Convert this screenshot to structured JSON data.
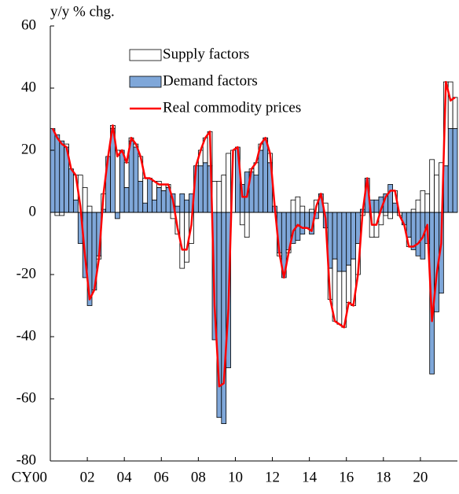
{
  "chart_data": {
    "type": "bar_line",
    "y_label": "y/y % chg.",
    "categories": [
      "CY00",
      null,
      null,
      null,
      null,
      null,
      null,
      null,
      "02",
      null,
      null,
      null,
      null,
      null,
      null,
      null,
      "04",
      null,
      null,
      null,
      null,
      null,
      null,
      null,
      "06",
      null,
      null,
      null,
      null,
      null,
      null,
      null,
      "08",
      null,
      null,
      null,
      null,
      null,
      null,
      null,
      "10",
      null,
      null,
      null,
      null,
      null,
      null,
      null,
      "12",
      null,
      null,
      null,
      null,
      null,
      null,
      null,
      "14",
      null,
      null,
      null,
      null,
      null,
      null,
      null,
      "16",
      null,
      null,
      null,
      null,
      null,
      null,
      null,
      "18",
      null,
      null,
      null,
      null,
      null,
      null,
      null,
      "20",
      null,
      null,
      null,
      null,
      null,
      null,
      null
    ],
    "series": [
      {
        "name": "Supply factors",
        "color": "#ffffff",
        "kind": "bar",
        "values": [
          0,
          -1,
          -1,
          1,
          0,
          8,
          12,
          8,
          2,
          0,
          -1,
          5,
          0,
          1,
          20,
          0,
          8,
          1,
          1,
          8,
          8,
          0,
          6,
          2,
          2,
          1,
          -2,
          -7,
          -18,
          -16,
          -10,
          0,
          5,
          8,
          11,
          10,
          10,
          12,
          19,
          20,
          0,
          -4,
          -8,
          1,
          4,
          2,
          0,
          3,
          0,
          -1,
          0,
          -1,
          4,
          5,
          2,
          0,
          1,
          4,
          0,
          3,
          -10,
          -20,
          -17,
          -18,
          -12,
          -15,
          -10,
          -1,
          0,
          -8,
          -8,
          -4,
          -1,
          -2,
          4,
          -1,
          0,
          -3,
          1,
          4,
          7,
          6,
          17,
          12,
          16,
          27,
          15,
          10
        ]
      },
      {
        "name": "Demand factors",
        "color": "#7fa7d9",
        "kind": "bar",
        "values": [
          27,
          25,
          23,
          21,
          14,
          4,
          -10,
          -21,
          -30,
          -25,
          -14,
          1,
          18,
          27,
          -2,
          20,
          8,
          23,
          21,
          10,
          3,
          11,
          4,
          8,
          7,
          8,
          6,
          2,
          6,
          4,
          6,
          15,
          15,
          16,
          15,
          -41,
          -66,
          -68,
          -50,
          0,
          21,
          9,
          13,
          13,
          12,
          20,
          24,
          16,
          2,
          -13,
          -21,
          -12,
          -10,
          -9,
          -7,
          -5,
          -7,
          -2,
          6,
          -5,
          -18,
          -15,
          -19,
          -19,
          -17,
          -15,
          -10,
          1,
          11,
          4,
          4,
          5,
          6,
          9,
          3,
          0,
          -4,
          -8,
          -12,
          -14,
          -15,
          -10,
          -52,
          -32,
          -26,
          15,
          27,
          27
        ]
      },
      {
        "name": "Real commodity prices",
        "color": "#ff0000",
        "kind": "line",
        "values": [
          27,
          24,
          22,
          21,
          14,
          12,
          2,
          -14,
          -28,
          -25,
          -15,
          6,
          18,
          28,
          18,
          20,
          16,
          24,
          22,
          18,
          11,
          11,
          10,
          9,
          9,
          9,
          4,
          -5,
          -12,
          -12,
          -4,
          15,
          20,
          24,
          26,
          -30,
          -56,
          -55,
          -31,
          20,
          21,
          5,
          5,
          14,
          16,
          22,
          24,
          19,
          2,
          -13,
          -21,
          -13,
          -6,
          -4,
          -5,
          -5,
          -6,
          2,
          6,
          -2,
          -28,
          -35,
          -36,
          -37,
          -29,
          -30,
          -20,
          0,
          11,
          -4,
          -4,
          1,
          5,
          7,
          7,
          -1,
          -4,
          -11,
          -11,
          -10,
          -8,
          -4,
          -35,
          -20,
          -10,
          42,
          36,
          37
        ]
      }
    ],
    "ylim": [
      -80,
      60
    ],
    "yticks": [
      -80,
      -60,
      -40,
      -20,
      0,
      20,
      40,
      60
    ]
  }
}
